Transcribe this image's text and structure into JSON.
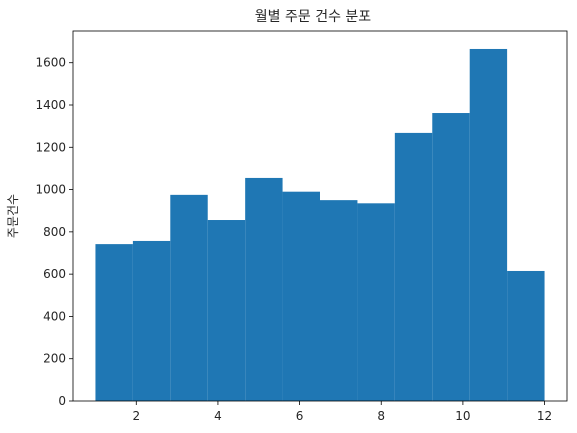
{
  "chart_data": {
    "type": "bar",
    "title": "월별 주문 건수 분포",
    "xlabel": "",
    "ylabel": "주문건수",
    "bins": [
      {
        "x0": 1.0,
        "x1": 1.917,
        "value": 742
      },
      {
        "x0": 1.917,
        "x1": 2.833,
        "value": 757
      },
      {
        "x0": 2.833,
        "x1": 3.75,
        "value": 975
      },
      {
        "x0": 3.75,
        "x1": 4.667,
        "value": 856
      },
      {
        "x0": 4.667,
        "x1": 5.583,
        "value": 1055
      },
      {
        "x0": 5.583,
        "x1": 6.5,
        "value": 990
      },
      {
        "x0": 6.5,
        "x1": 7.417,
        "value": 950
      },
      {
        "x0": 7.417,
        "x1": 8.333,
        "value": 935
      },
      {
        "x0": 8.333,
        "x1": 9.25,
        "value": 1268
      },
      {
        "x0": 9.25,
        "x1": 10.167,
        "value": 1362
      },
      {
        "x0": 10.167,
        "x1": 11.083,
        "value": 1665
      },
      {
        "x0": 11.083,
        "x1": 12.0,
        "value": 615
      }
    ],
    "xlim": [
      0.45,
      12.55
    ],
    "ylim": [
      0,
      1750
    ],
    "xticks": [
      2,
      4,
      6,
      8,
      10,
      12
    ],
    "yticks": [
      0,
      200,
      400,
      600,
      800,
      1000,
      1200,
      1400,
      1600
    ],
    "grid": false,
    "bar_color": "#1f77b4"
  }
}
